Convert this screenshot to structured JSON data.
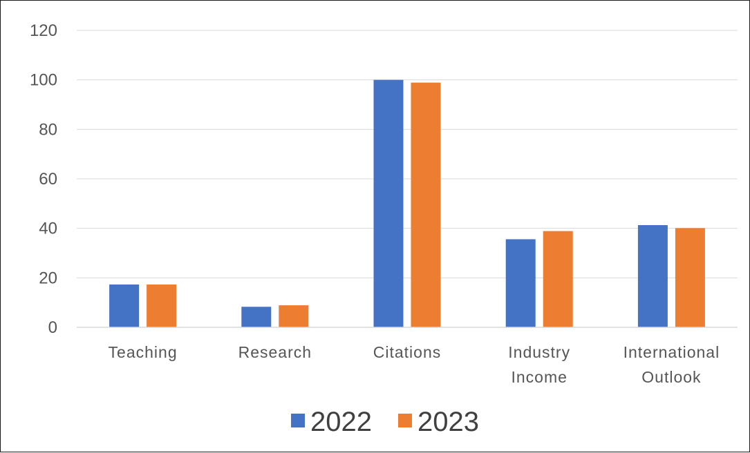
{
  "chart_data": {
    "type": "bar",
    "categories": [
      "Teaching",
      "Research",
      "Citations",
      "Industry Income",
      "International Outlook"
    ],
    "category_lines": [
      [
        "Teaching"
      ],
      [
        "Research"
      ],
      [
        "Citations"
      ],
      [
        "Industry",
        "Income"
      ],
      [
        "International",
        "Outlook"
      ]
    ],
    "series": [
      {
        "name": "2022",
        "values": [
          17.3,
          8.3,
          100,
          35.6,
          41.3
        ],
        "color": "#4472C4"
      },
      {
        "name": "2023",
        "values": [
          17.3,
          8.9,
          98.9,
          38.9,
          40.1
        ],
        "color": "#ED7D31"
      }
    ],
    "title": "",
    "xlabel": "",
    "ylabel": "",
    "ylim": [
      0,
      120
    ],
    "yticks": [
      "0",
      "20",
      "40",
      "60",
      "80",
      "100",
      "120"
    ],
    "grid": true,
    "legend_position": "bottom",
    "gridline_color": "#D9D9D9"
  }
}
